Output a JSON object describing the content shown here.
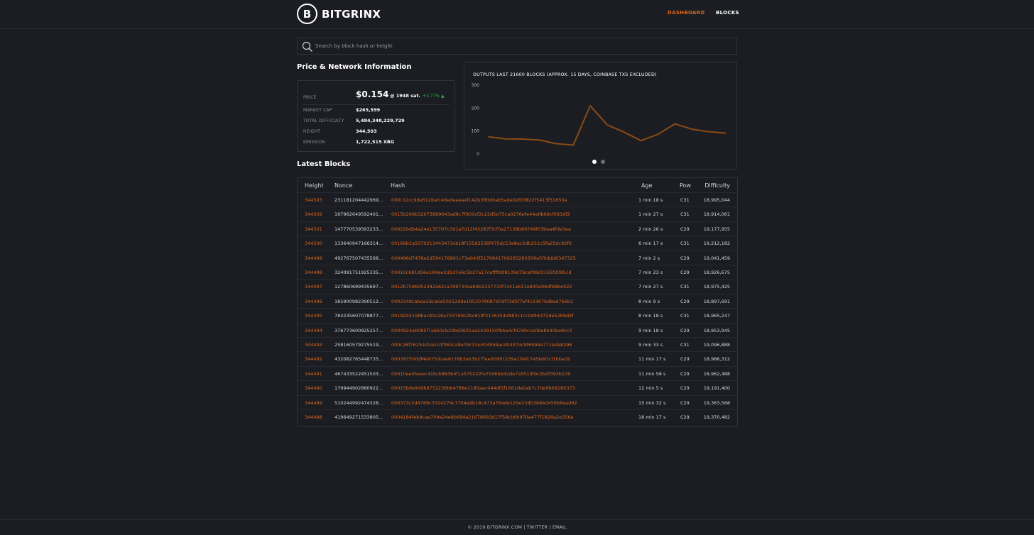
{
  "header": {
    "logo_letter": "B",
    "brand": "BITGRINX",
    "nav": {
      "dashboard": "DASHBOARD",
      "blocks": "BLOCKS"
    },
    "accent_color": "#e0651b"
  },
  "search": {
    "placeholder": "Search by block hash or height"
  },
  "price_section": {
    "title": "Price & Network Information",
    "price_label": "PRICE",
    "price_value": "$0.154",
    "price_sats": "@ 1948 sat.",
    "price_change": "+3.77% ▲",
    "rows": [
      {
        "label": "MARKET CAP",
        "value": "$265,599"
      },
      {
        "label": "TOTAL DIFFICULTY",
        "value": "5,484,348,229,729"
      },
      {
        "label": "HEIGHT",
        "value": "344,503"
      },
      {
        "label": "EMISSION",
        "value": "1,722,515 XBG"
      }
    ]
  },
  "chart_data": {
    "type": "line",
    "title": "OUTPUTS LAST 21600 BLOCKS (APPROX. 15 DAYS, COINBASE TXS EXCLUDED)",
    "ylim": [
      0,
      300
    ],
    "yticks": [
      0,
      100,
      200,
      300
    ],
    "series": [
      {
        "values": [
          75,
          66,
          65,
          61,
          45,
          39,
          210,
          127,
          95,
          58,
          86,
          131,
          108,
          97,
          91
        ]
      }
    ],
    "line_color": "#8a4b14",
    "grid": false,
    "carousel_dots": 2
  },
  "latest_blocks": {
    "title": "Latest Blocks",
    "columns": [
      "Height",
      "Nonce",
      "Hash",
      "Age",
      "Pow",
      "Difficulty"
    ],
    "rows": [
      {
        "height": "344503",
        "nonce": "231181204442969...",
        "hash": "000c12cc9de512bafc46edeaeaef142b3ffdd0ab5ade0283f822f5413f31650a",
        "age": "1 min 18 s",
        "pow": "C31",
        "difficulty": "18,995,044"
      },
      {
        "height": "344502",
        "nonce": "197962649592401...",
        "hash": "0015b299b32073889043ad8c7f900cf2c22d5e75ca0276efe44a0b68cf093df2",
        "age": "1 min 27 s",
        "pow": "C31",
        "difficulty": "18,914,061"
      },
      {
        "height": "344501",
        "nonce": "147770539393233...",
        "hash": "000220db4a24e135707c091a7d12f45287f3cf0a27139b80749f03bea4fde3ea",
        "age": "2 min 26 s",
        "pow": "C29",
        "difficulty": "19,177,955"
      },
      {
        "height": "344500",
        "nonce": "133640947166314...",
        "hash": "00166b1a5070213443473cb18f155d2538f475dc53e8ec5db251c5fa25dc92f6",
        "age": "6 min 17 s",
        "pow": "C31",
        "difficulty": "19,212,182"
      },
      {
        "height": "344499",
        "nonce": "492767507435568...",
        "hash": "000496d7478e2d584176801c73a046f217684170928328030​9a5f0ddd6347325",
        "age": "7 min 2 s",
        "pow": "C29",
        "difficulty": "19,041,459"
      },
      {
        "height": "344498",
        "nonce": "324091751925335...",
        "hash": "00010c681d56e184ae2d1d7e6c5b27a17ceffffd08109d7bcaf08d3165f3085cd",
        "age": "7 min 23 s",
        "pow": "C29",
        "difficulty": "18,926,675"
      },
      {
        "height": "344497",
        "nonce": "127860699435697...",
        "hash": "0012b7586d52442a62ca768734aab9b1337733f7c41a611e830e96df68be022",
        "age": "7 min 27 s",
        "pow": "C31",
        "difficulty": "18,975,425"
      },
      {
        "height": "344496",
        "nonce": "185900982390512...",
        "hash": "0002348cabea2dca6e50212dde1953078087d7df73d5f7ef4c23676d8ad766b1",
        "age": "8 min 9 s",
        "pow": "C29",
        "difficulty": "18,897,691"
      },
      {
        "height": "344495",
        "nonce": "784235607078877...",
        "hash": "0019255198bac80c28a743769c2bc618f3176354d983c1cc0d94d72de52b9d4f",
        "age": "8 min 18 s",
        "pow": "C31",
        "difficulty": "18,965,247"
      },
      {
        "height": "344494",
        "nonce": "376773600925257...",
        "hash": "0000924eb085f7ab63cb20bd3601aa5439150fbba4cf47d0cce0be8b40be9cc2",
        "age": "9 min 18 s",
        "pow": "C29",
        "difficulty": "18,953,945"
      },
      {
        "height": "344493",
        "nonce": "258160579275519...",
        "hash": "000c26f76254cb4e10f061ca9e7dc33e3045bbacd04374c9f6994e771eda8296",
        "age": "9 min 33 s",
        "pow": "C31",
        "difficulty": "19,096,888"
      },
      {
        "height": "344492",
        "nonce": "432082765448735...",
        "hash": "000397500df4e975dcee6176b3eb3927fae00991239a10efc7efda93cf1bba1b",
        "age": "11 min 17 s",
        "pow": "C29",
        "difficulty": "18,986,312"
      },
      {
        "height": "344491",
        "nonce": "467433522451503...",
        "hash": "00010ee0feeec41bcb883b4f1a570222fe70d6bb42de7a5519fbc2bdf393b139",
        "age": "11 min 58 s",
        "pow": "C29",
        "difficulty": "18,962,488"
      },
      {
        "height": "344490",
        "nonce": "179944902880922...",
        "hash": "00015bde9ddb8752236bb4788e1185aac044df2f1661da0ab7c7de9b69180373",
        "age": "12 min 5 s",
        "pow": "C29",
        "difficulty": "19,191,400"
      },
      {
        "height": "344489",
        "nonce": "510244992474328...",
        "hash": "000373c5d4769c3324274c7704e9b18c473a764de129e25d03884d456b8ead92",
        "age": "15 min 32 s",
        "pow": "C29",
        "difficulty": "19,363,568"
      },
      {
        "height": "344488",
        "nonce": "419649271533805...",
        "hash": "0004184feb9cae709e24e8b694a21678683d17f58cb6b970a477f1828a2e356e",
        "age": "18 min 17 s",
        "pow": "C29",
        "difficulty": "19,370,482"
      }
    ]
  },
  "footer": {
    "text": "© 2019 BITGRINX.COM | TWITTER | EMAIL"
  }
}
